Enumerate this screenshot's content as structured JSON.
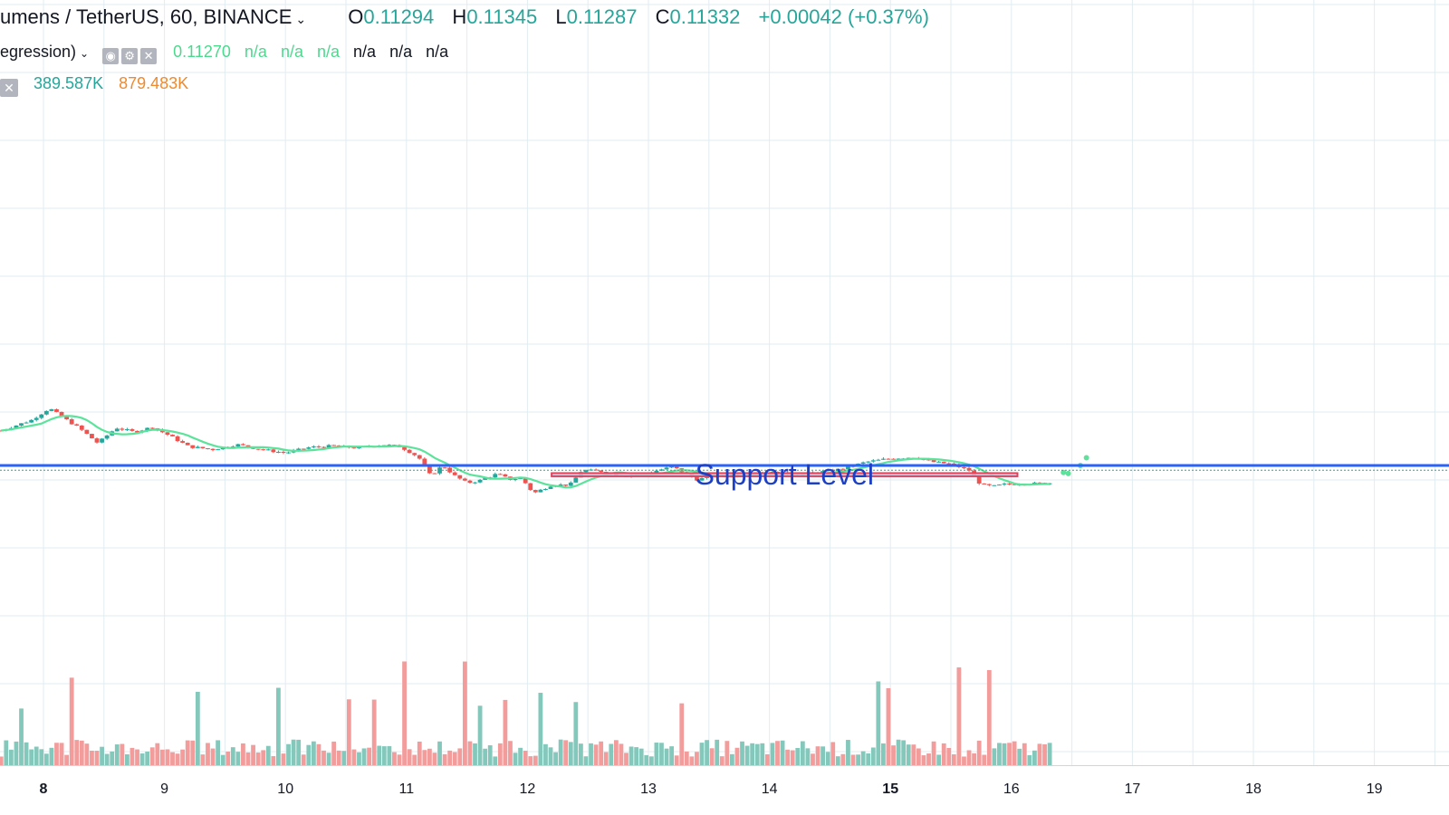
{
  "header": {
    "symbol": "umens / TetherUS, 60, BINANCE",
    "o_label": "O",
    "o_value": "0.11294",
    "h_label": "H",
    "h_value": "0.11345",
    "l_label": "L",
    "l_value": "0.11287",
    "c_label": "C",
    "c_value": "0.11332",
    "change": "+0.00042 (+0.37%)"
  },
  "indicator": {
    "name": "egression)",
    "value": "0.11270",
    "green_na": [
      "n/a",
      "n/a",
      "n/a"
    ],
    "black_na": [
      "n/a",
      "n/a",
      "n/a"
    ]
  },
  "volume_legend": {
    "value_1": "389.587K",
    "value_2": "879.483K"
  },
  "annotation": {
    "label": "Support Level",
    "fill": "#d5cbe8",
    "border": "#e0435a",
    "text_color": "#1d3fc4",
    "from_time": 12.2,
    "to_time": 16.05,
    "price_top": 0.1129,
    "price_bottom": 0.11245
  },
  "colors": {
    "up": "#26a69a",
    "down": "#ef5350",
    "vol_up": "#84c8bc",
    "vol_down": "#f29c9b",
    "ma": "#5ce39b",
    "hline": "#2962ff",
    "grid": "#e1ecf2"
  },
  "chart_data": {
    "type": "candlestick",
    "x_unit": "day of month",
    "x_ticks": [
      "8",
      "9",
      "10",
      "11",
      "12",
      "13",
      "14",
      "15",
      "16",
      "17",
      "18",
      "19"
    ],
    "bold_ticks": [
      "8",
      "15"
    ],
    "horizontal_line": 0.114,
    "current_price": 0.11332,
    "forecast_points": [
      {
        "time": 16.62,
        "price": 0.1151
      },
      {
        "time": 16.57,
        "price": 0.114
      },
      {
        "time": 16.43,
        "price": 0.113
      },
      {
        "time": 16.47,
        "price": 0.11285
      }
    ],
    "price_series": [
      [
        7.65,
        0.119
      ],
      [
        7.9,
        0.1205
      ],
      [
        8.05,
        0.1222
      ],
      [
        8.15,
        0.121
      ],
      [
        8.3,
        0.1193
      ],
      [
        8.45,
        0.1172
      ],
      [
        8.6,
        0.1194
      ],
      [
        8.75,
        0.1188
      ],
      [
        8.9,
        0.1195
      ],
      [
        9.05,
        0.1182
      ],
      [
        9.2,
        0.1167
      ],
      [
        9.4,
        0.1163
      ],
      [
        9.6,
        0.117
      ],
      [
        9.8,
        0.1163
      ],
      [
        10.0,
        0.1158
      ],
      [
        10.2,
        0.1166
      ],
      [
        10.4,
        0.1168
      ],
      [
        10.6,
        0.1165
      ],
      [
        10.8,
        0.117
      ],
      [
        10.95,
        0.1167
      ],
      [
        11.1,
        0.1152
      ],
      [
        11.2,
        0.1125
      ],
      [
        11.3,
        0.114
      ],
      [
        11.4,
        0.1125
      ],
      [
        11.5,
        0.1115
      ],
      [
        11.6,
        0.1118
      ],
      [
        11.75,
        0.1128
      ],
      [
        11.85,
        0.112
      ],
      [
        11.95,
        0.1122
      ],
      [
        12.05,
        0.11
      ],
      [
        12.2,
        0.1112
      ],
      [
        12.35,
        0.1112
      ],
      [
        12.45,
        0.1133
      ],
      [
        12.6,
        0.1132
      ],
      [
        12.8,
        0.1125
      ],
      [
        13.0,
        0.113
      ],
      [
        13.2,
        0.1138
      ],
      [
        13.4,
        0.112
      ],
      [
        13.6,
        0.1126
      ],
      [
        13.8,
        0.1128
      ],
      [
        14.0,
        0.113
      ],
      [
        14.2,
        0.1127
      ],
      [
        14.4,
        0.113
      ],
      [
        14.6,
        0.1135
      ],
      [
        14.8,
        0.1145
      ],
      [
        15.0,
        0.115
      ],
      [
        15.2,
        0.1152
      ],
      [
        15.35,
        0.1145
      ],
      [
        15.5,
        0.1142
      ],
      [
        15.65,
        0.1133
      ],
      [
        15.75,
        0.1112
      ],
      [
        15.85,
        0.111
      ],
      [
        15.95,
        0.1113
      ],
      [
        16.1,
        0.1114
      ],
      [
        16.2,
        0.1114
      ],
      [
        16.35,
        0.1115
      ]
    ]
  }
}
